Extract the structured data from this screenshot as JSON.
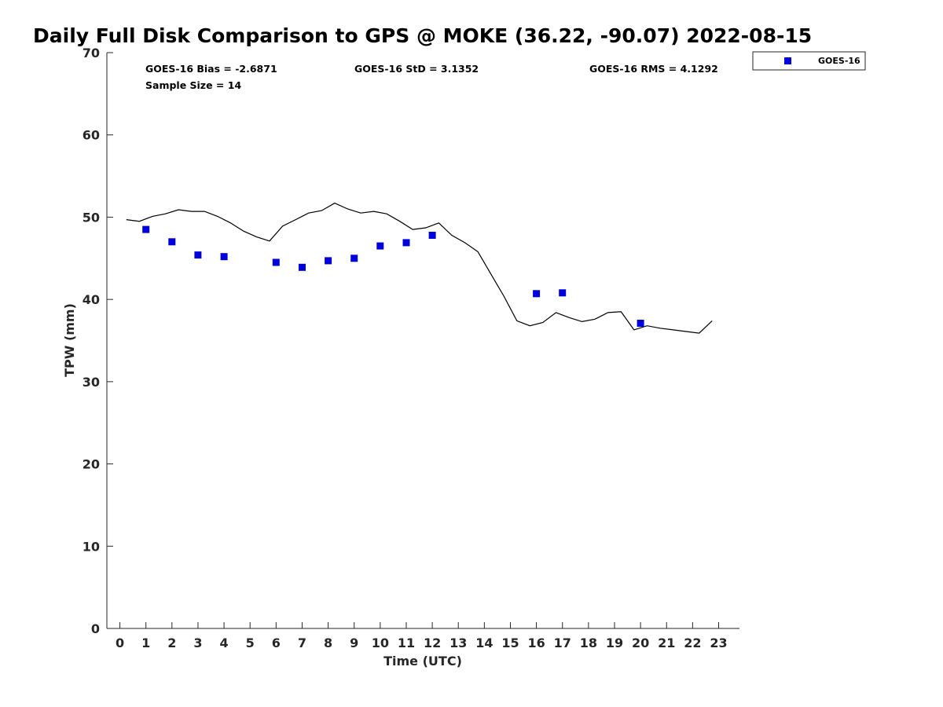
{
  "chart_data": {
    "type": "scatter",
    "title": "Daily Full Disk Comparison to GPS @ MOKE (36.22, -90.07) 2022-08-15",
    "xlabel": "Time (UTC)",
    "ylabel": "TPW (mm)",
    "xlim": [
      -0.5,
      23.8
    ],
    "ylim": [
      0,
      70
    ],
    "xticks": [
      0,
      1,
      2,
      3,
      4,
      5,
      6,
      7,
      8,
      9,
      10,
      11,
      12,
      13,
      14,
      15,
      16,
      17,
      18,
      19,
      20,
      21,
      22,
      23
    ],
    "yticks": [
      0,
      10,
      20,
      30,
      40,
      50,
      60,
      70
    ],
    "grid": false,
    "legend_position": "outside-top-right",
    "stats": {
      "bias": "GOES-16 Bias = -2.6871",
      "std": "GOES-16 StD = 3.1352",
      "rms": "GOES-16 RMS = 4.1292",
      "sample": "Sample Size = 14"
    },
    "legend": [
      {
        "name": "GOES-16",
        "color": "#0000dd",
        "marker": "square"
      }
    ],
    "series": [
      {
        "name": "GOES-16",
        "kind": "scatter",
        "color": "#0000dd",
        "x": [
          1,
          2,
          3,
          4,
          6,
          7,
          8,
          9,
          10,
          11,
          12,
          16,
          17,
          20
        ],
        "y": [
          48.5,
          47.0,
          45.4,
          45.2,
          44.5,
          43.9,
          44.7,
          45.0,
          46.5,
          46.9,
          47.8,
          40.7,
          40.8,
          37.1
        ]
      },
      {
        "kind": "line",
        "color": "#000000",
        "x": [
          0.25,
          0.75,
          1.25,
          1.75,
          2.25,
          2.75,
          3.25,
          3.75,
          4.25,
          4.75,
          5.25,
          5.75,
          6.25,
          6.75,
          7.25,
          7.75,
          8.25,
          8.75,
          9.25,
          9.75,
          10.25,
          10.75,
          11.25,
          11.75,
          12.25,
          12.75,
          13.25,
          13.75,
          14.25,
          14.75,
          15.25,
          15.75,
          16.25,
          16.75,
          17.25,
          17.75,
          18.25,
          18.75,
          19.25,
          19.75,
          20.25,
          20.75,
          21.25,
          21.75,
          22.25,
          22.75
        ],
        "y": [
          49.7,
          49.5,
          50.1,
          50.4,
          50.9,
          50.7,
          50.7,
          50.1,
          49.3,
          48.3,
          47.6,
          47.1,
          48.9,
          49.7,
          50.5,
          50.8,
          51.7,
          51.0,
          50.5,
          50.7,
          50.4,
          49.5,
          48.5,
          48.7,
          49.3,
          47.8,
          46.9,
          45.8,
          43.1,
          40.4,
          37.4,
          36.8,
          37.2,
          38.4,
          37.8,
          37.3,
          37.6,
          38.4,
          38.5,
          36.3,
          36.8,
          36.5,
          36.3,
          36.1,
          35.9,
          37.4
        ]
      }
    ]
  }
}
